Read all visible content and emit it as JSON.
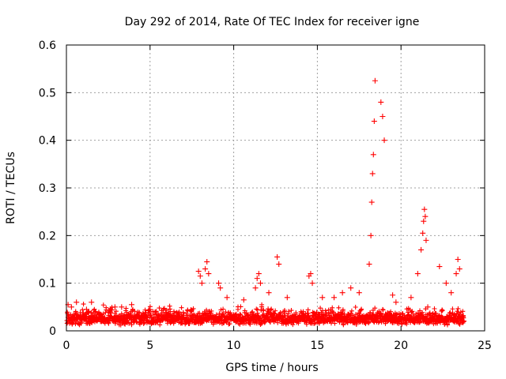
{
  "chart_data": {
    "type": "scatter",
    "title": "Day 292 of 2014, Rate Of TEC Index for receiver igne",
    "xlabel": "GPS time / hours",
    "ylabel": "ROTI / TECUs",
    "xlim": [
      0,
      25
    ],
    "ylim": [
      0,
      0.6
    ],
    "grid": true,
    "marker": "+",
    "color": "#ff0000",
    "xticks": [
      "0",
      "5",
      "10",
      "15",
      "20",
      "25"
    ],
    "yticks": [
      "0",
      "0.1",
      "0.2",
      "0.3",
      "0.4",
      "0.5",
      "0.6"
    ],
    "x": [
      0.1,
      0.3,
      0.6,
      1.2,
      1.5,
      2.5,
      2.9,
      3.3,
      3.9,
      4.1,
      5.8,
      6.2,
      7.9,
      8.0,
      8.1,
      8.3,
      8.4,
      8.5,
      9.1,
      9.2,
      9.6,
      10.6,
      11.3,
      11.4,
      11.5,
      11.6,
      12.1,
      12.6,
      12.7,
      13.2,
      14.5,
      14.6,
      14.7,
      15.3,
      16.0,
      16.5,
      17.0,
      17.5,
      18.1,
      18.2,
      18.25,
      18.3,
      18.35,
      18.4,
      18.45,
      18.8,
      18.9,
      19.0,
      19.5,
      19.7,
      20.6,
      21.0,
      21.2,
      21.3,
      21.35,
      21.4,
      21.45,
      21.5,
      21.6,
      22.3,
      22.7,
      23.0,
      23.3,
      23.4,
      23.5,
      23.7
    ],
    "y": [
      0.055,
      0.05,
      0.06,
      0.045,
      0.06,
      0.04,
      0.05,
      0.05,
      0.055,
      0.03,
      0.045,
      0.035,
      0.125,
      0.115,
      0.1,
      0.13,
      0.145,
      0.12,
      0.1,
      0.09,
      0.07,
      0.065,
      0.09,
      0.11,
      0.12,
      0.1,
      0.08,
      0.155,
      0.14,
      0.07,
      0.115,
      0.12,
      0.1,
      0.07,
      0.07,
      0.08,
      0.09,
      0.08,
      0.14,
      0.2,
      0.27,
      0.33,
      0.37,
      0.44,
      0.525,
      0.48,
      0.45,
      0.4,
      0.075,
      0.06,
      0.07,
      0.12,
      0.17,
      0.205,
      0.23,
      0.255,
      0.24,
      0.19,
      0.05,
      0.135,
      0.1,
      0.08,
      0.12,
      0.15,
      0.13,
      0.03
    ]
  }
}
